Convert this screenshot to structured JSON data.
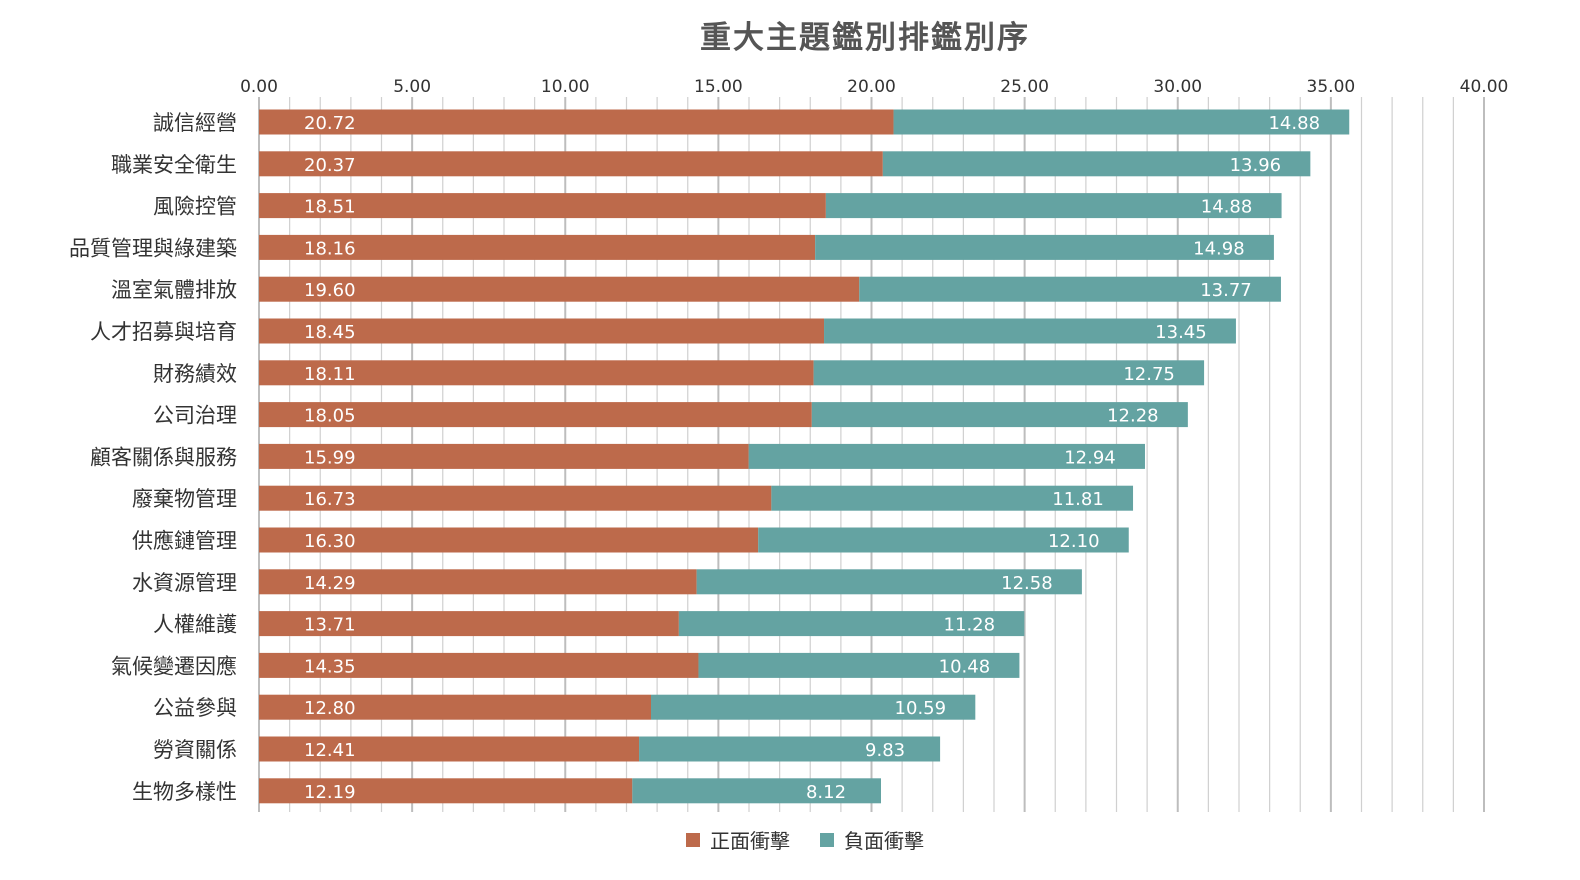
{
  "chart_data": {
    "type": "bar",
    "orientation": "horizontal",
    "stacked": true,
    "title": "重大主題鑑別排鑑別序",
    "xlabel": "",
    "ylabel": "",
    "xlim": [
      0,
      40
    ],
    "x_major_step": 5,
    "x_minor_step": 1,
    "x_tick_labels": [
      "0.00",
      "5.00",
      "10.00",
      "15.00",
      "20.00",
      "25.00",
      "30.00",
      "35.00",
      "40.00"
    ],
    "x_axis_position": "top",
    "grid": true,
    "legend_position": "bottom",
    "categories": [
      "誠信經營",
      "職業安全衛生",
      "風險控管",
      "品質管理與綠建築",
      "溫室氣體排放",
      "人才招募與培育",
      "財務績效",
      "公司治理",
      "顧客關係與服務",
      "廢棄物管理",
      "供應鏈管理",
      "水資源管理",
      "人權維護",
      "氣候變遷因應",
      "公益參與",
      "勞資關係",
      "生物多樣性"
    ],
    "series": [
      {
        "name": "正面衝擊",
        "color": "#bd6a4b",
        "values": [
          20.72,
          20.37,
          18.51,
          18.16,
          19.6,
          18.45,
          18.11,
          18.05,
          15.99,
          16.73,
          16.3,
          14.29,
          13.71,
          14.35,
          12.8,
          12.41,
          12.19
        ],
        "labels": [
          "20.72",
          "20.37",
          "18.51",
          "18.16",
          "19.60",
          "18.45",
          "18.11",
          "18.05",
          "15.99",
          "16.73",
          "16.30",
          "14.29",
          "13.71",
          "14.35",
          "12.80",
          "12.41",
          "12.19"
        ]
      },
      {
        "name": "負面衝擊",
        "color": "#64a3a2",
        "values": [
          14.88,
          13.96,
          14.88,
          14.98,
          13.77,
          13.45,
          12.75,
          12.28,
          12.94,
          11.81,
          12.1,
          12.58,
          11.28,
          10.48,
          10.59,
          9.83,
          8.12
        ],
        "labels": [
          "14.88",
          "13.96",
          "14.88",
          "14.98",
          "13.77",
          "13.45",
          "12.75",
          "12.28",
          "12.94",
          "11.81",
          "12.10",
          "12.58",
          "11.28",
          "10.48",
          "10.59",
          "9.83",
          "8.12"
        ]
      }
    ]
  }
}
